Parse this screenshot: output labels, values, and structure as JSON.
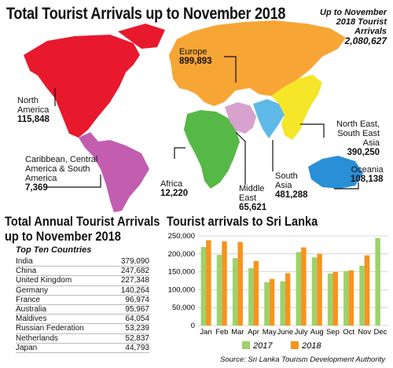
{
  "title": "Total Tourist Arrivals up to November 2018",
  "total": {
    "caption_line1": "Up to November",
    "caption_line2": "2018 Tourist",
    "caption_line3": "Arrivals",
    "value": "2,080,627"
  },
  "regions": [
    {
      "key": "north_america",
      "name_line1": "North",
      "name_line2": "America",
      "name_line3": "",
      "value": "115,848",
      "color": "#e8192c"
    },
    {
      "key": "caribbean",
      "name_line1": "Caribbean, Central",
      "name_line2": "America & South",
      "name_line3": "America",
      "value": "7,369",
      "color": "#c25db0"
    },
    {
      "key": "europe",
      "name_line1": "Europe",
      "name_line2": "",
      "name_line3": "",
      "value": "899,893",
      "color": "#f7a535"
    },
    {
      "key": "africa",
      "name_line1": "Africa",
      "name_line2": "",
      "name_line3": "",
      "value": "12,220",
      "color": "#56b846"
    },
    {
      "key": "middle_east",
      "name_line1": "Middle",
      "name_line2": "East",
      "name_line3": "",
      "value": "65,621",
      "color": "#d7a2ce"
    },
    {
      "key": "south_asia",
      "name_line1": "South",
      "name_line2": "Asia",
      "name_line3": "",
      "value": "481,288",
      "color": "#5fb9e8"
    },
    {
      "key": "ne_se_asia",
      "name_line1": "North East,",
      "name_line2": "South East",
      "name_line3": "Asia",
      "value": "390,250",
      "color": "#f5e629"
    },
    {
      "key": "oceania",
      "name_line1": "Oceania",
      "name_line2": "",
      "name_line3": "",
      "value": "108,138",
      "color": "#2a8fd6"
    }
  ],
  "annual": {
    "title_line1": "Total Annual Tourist Arrivals",
    "title_line2": "up to November 2018",
    "subtitle": "Top Ten Countries",
    "countries": [
      {
        "name": "India",
        "value": "379,090"
      },
      {
        "name": "China",
        "value": "247,682"
      },
      {
        "name": "United Kingdom",
        "value": "227,348"
      },
      {
        "name": "Germany",
        "value": "140,264"
      },
      {
        "name": "France",
        "value": "96,974"
      },
      {
        "name": "Australia",
        "value": "95,967"
      },
      {
        "name": "Maldives",
        "value": "64,054"
      },
      {
        "name": "Russian Federation",
        "value": "53,239"
      },
      {
        "name": "Netherlands",
        "value": "52,837"
      },
      {
        "name": "Japan",
        "value": "44,793"
      }
    ]
  },
  "chart_data": {
    "type": "bar",
    "title": "Tourist arrivals to Sri Lanka",
    "categories": [
      "Jan",
      "Feb",
      "Mar",
      "Apr",
      "May",
      "June",
      "July",
      "Aug",
      "Sep",
      "Oct",
      "Nov",
      "Dec"
    ],
    "series": [
      {
        "name": "2017",
        "color": "#9ed16b",
        "values": [
          219000,
          197000,
          188000,
          160000,
          121000,
          123000,
          205000,
          190000,
          145000,
          152000,
          167000,
          244000
        ]
      },
      {
        "name": "2018",
        "color": "#f7941d",
        "values": [
          238000,
          235000,
          233000,
          180000,
          130000,
          146000,
          218000,
          200000,
          150000,
          154000,
          196000,
          null
        ]
      }
    ],
    "ylim": [
      0,
      250000
    ],
    "yticks": [
      "0",
      "50,000",
      "100,000",
      "150,000",
      "200,000",
      "250,000"
    ],
    "yticks_values": [
      0,
      50000,
      100000,
      150000,
      200000,
      250000
    ],
    "grid": true,
    "legend": "bottom"
  },
  "source": "Source: Sri Lanka Tourism Development Authority"
}
